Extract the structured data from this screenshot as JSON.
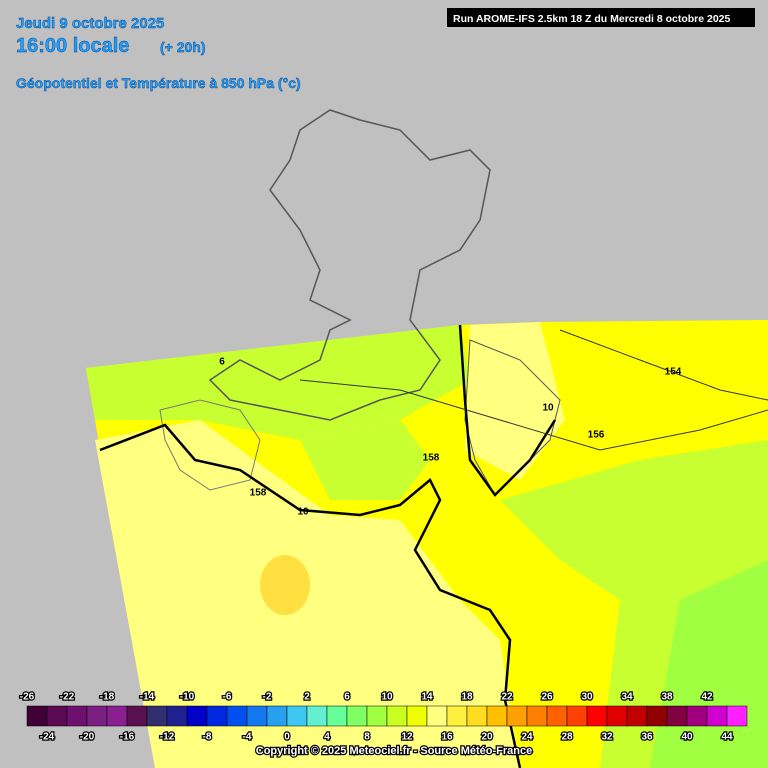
{
  "header": {
    "date": "Jeudi 9 octobre 2025",
    "time": "16:00 locale",
    "lead": "(+ 20h)",
    "parameter": "Géopotentiel et Température à 850 hPa (°c)"
  },
  "run": "Run AROME-IFS 2.5km 18 Z du Mercredi 8 octobre 2025",
  "legend": {
    "top_labels": [
      -26,
      -22,
      -18,
      -14,
      -10,
      -6,
      -2,
      2,
      6,
      10,
      14,
      18,
      22,
      26,
      30,
      34,
      38,
      42
    ],
    "bottom_labels": [
      -24,
      -20,
      -16,
      -12,
      -8,
      -4,
      0,
      4,
      8,
      12,
      16,
      20,
      24,
      28,
      32,
      36,
      40,
      44
    ],
    "colors": [
      "#400038",
      "#5a0a50",
      "#6e1070",
      "#7a2080",
      "#8a2090",
      "#5a1050",
      "#303070",
      "#202090",
      "#0000c8",
      "#0028e0",
      "#0050f0",
      "#1478f0",
      "#28a0f0",
      "#3cc8f0",
      "#64f0d0",
      "#64ff96",
      "#80ff64",
      "#a0ff40",
      "#c8ff20",
      "#f0ff00",
      "#ffff80",
      "#fff040",
      "#ffdc20",
      "#ffc000",
      "#ffa000",
      "#ff8000",
      "#ff6000",
      "#ff4000",
      "#ff0000",
      "#e00000",
      "#c00000",
      "#900000",
      "#800040",
      "#a00080",
      "#d000d0",
      "#ff20ff"
    ]
  },
  "contour_labels": [
    6,
    154,
    10,
    156,
    158,
    158,
    10
  ],
  "copyright": "Copyright © 2025 Meteociel.fr - Source Météo-France"
}
